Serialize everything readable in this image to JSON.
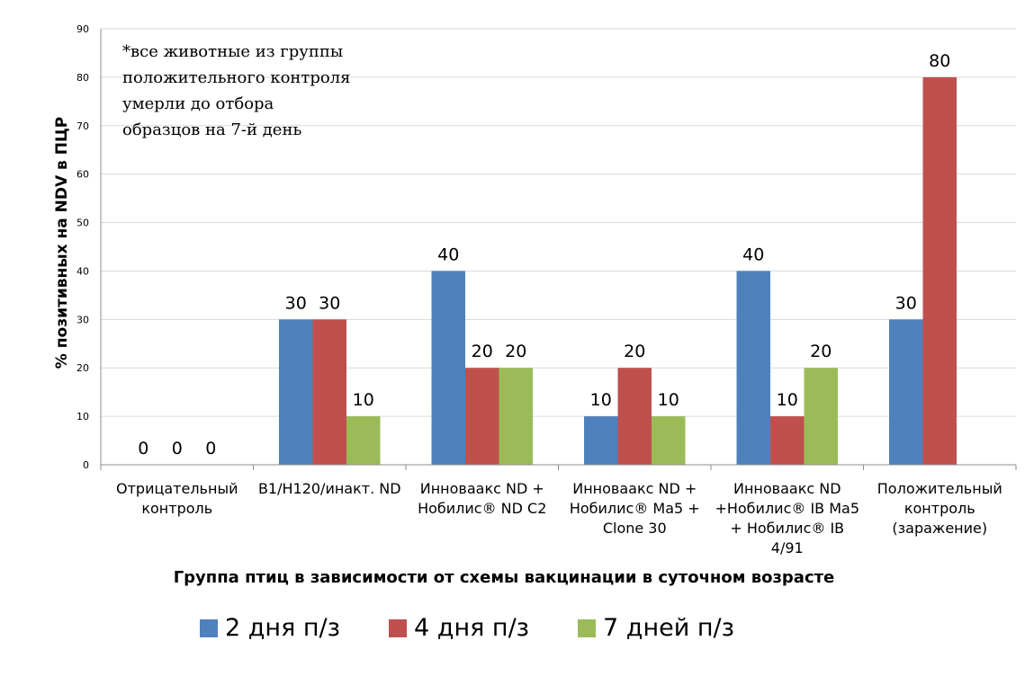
{
  "chart_data": {
    "type": "bar",
    "title": "",
    "xlabel": "Группа птиц в зависимости от схемы вакцинации в суточном возрасте",
    "ylabel": "% позитивных на NDV в ПЦР",
    "ylim": [
      0,
      90
    ],
    "yticks": [
      "0",
      "10",
      "20",
      "30",
      "40",
      "50",
      "60",
      "70",
      "80",
      "90"
    ],
    "grid": true,
    "legend_position": "bottom",
    "categories": [
      "Отрицательный\nконтроль",
      "B1/H120/инакт. ND",
      "Инноваакс ND +\nНобилис® ND C2",
      "Инноваакс ND +\nНобилис® Ma5 +\nClone 30",
      "Инноваакс ND\n+Нобилис® IB Ma5\n+ Нобилис® IB 4/91",
      "Положительный\nконтроль\n(заражение)"
    ],
    "series": [
      {
        "name": "2 дня п/з",
        "color": "#4f81bd",
        "values": [
          0,
          30,
          40,
          10,
          40,
          30
        ]
      },
      {
        "name": "4 дня п/з",
        "color": "#c0504d",
        "values": [
          0,
          30,
          20,
          20,
          10,
          80
        ]
      },
      {
        "name": "7 дней п/з",
        "color": "#9bbb59",
        "values": [
          0,
          10,
          20,
          10,
          20,
          null
        ]
      }
    ],
    "annotation": "*все животные из группы положительного контроля умерли до отбора образцов на 7-й день"
  }
}
